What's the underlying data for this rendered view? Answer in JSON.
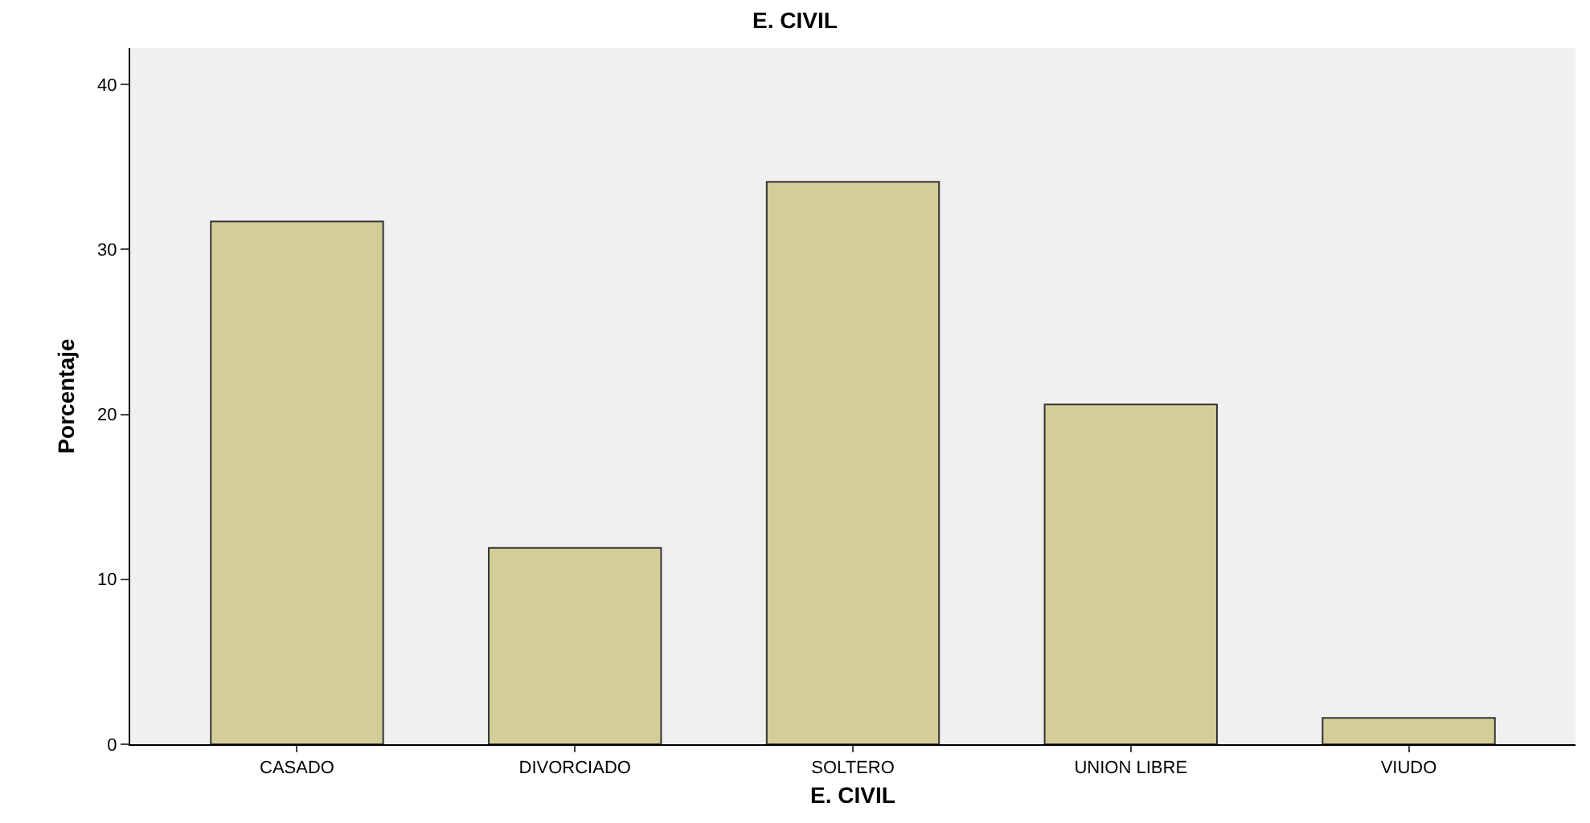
{
  "chart_data": {
    "type": "bar",
    "title": "E. CIVIL",
    "xlabel": "E. CIVIL",
    "ylabel": "Porcentaje",
    "categories": [
      "CASADO",
      "DIVORCIADO",
      "SOLTERO",
      "UNION LIBRE",
      "VIUDO"
    ],
    "values": [
      31.7,
      11.9,
      34.1,
      20.6,
      1.6
    ],
    "color": "#d3ce98",
    "ylim": [
      0,
      42.2
    ],
    "yticks": [
      0,
      10,
      20,
      30,
      40
    ],
    "grid": false
  }
}
